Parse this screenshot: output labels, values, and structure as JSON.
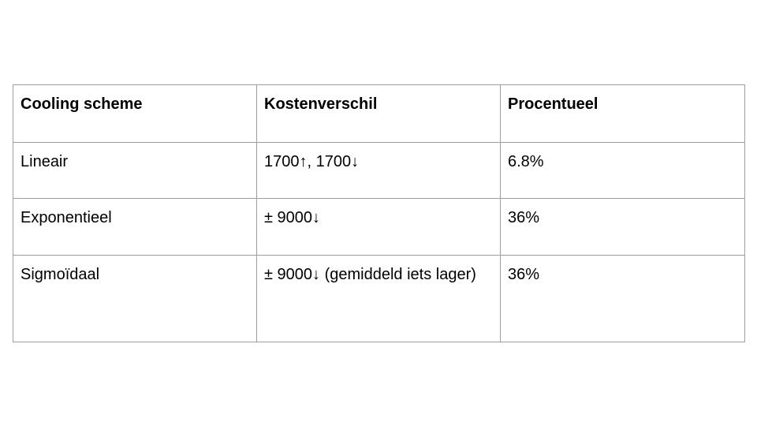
{
  "table": {
    "headers": [
      "Cooling scheme",
      "Kostenverschil",
      "Procentueel"
    ],
    "rows": [
      [
        "Lineair",
        "1700↑, 1700↓",
        "6.8%"
      ],
      [
        "Exponentieel",
        "± 9000↓",
        "36%"
      ],
      [
        "Sigmoïdaal",
        "± 9000↓ (gemiddeld iets lager)",
        "36%"
      ]
    ]
  }
}
